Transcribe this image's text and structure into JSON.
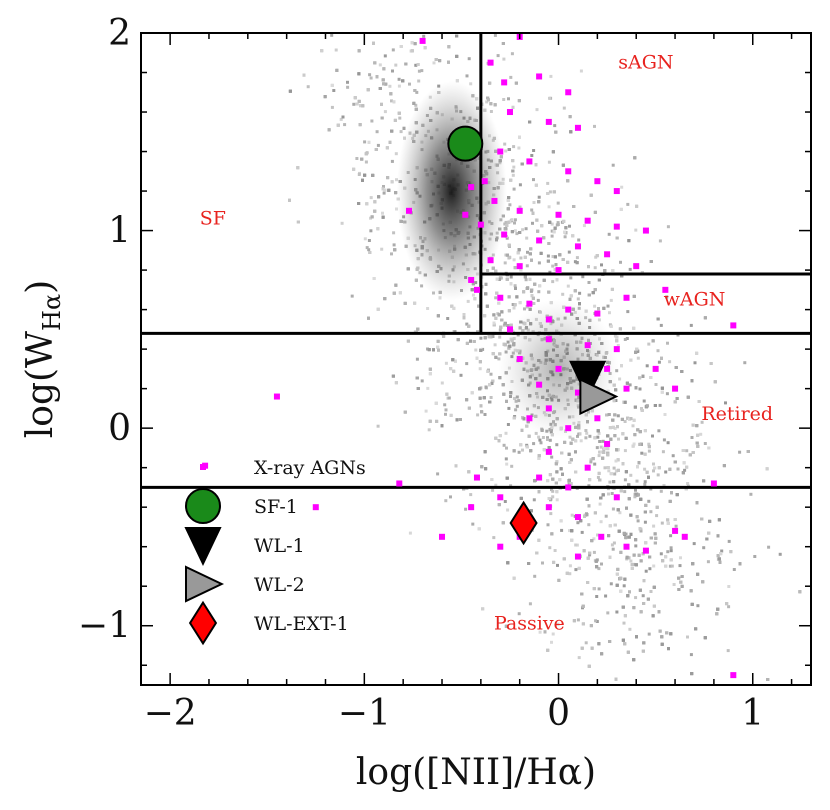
{
  "chart_data": {
    "type": "scatter",
    "title": "",
    "xlabel": "log([NII]/Hα)",
    "ylabel": {
      "main": "log(W",
      "sub": "Hα",
      "close": ")"
    },
    "xlim": [
      -2.15,
      1.3
    ],
    "ylim": [
      -1.3,
      2.0
    ],
    "xticks": [
      -2,
      -1,
      0,
      1
    ],
    "xtick_labels": [
      "−2",
      "−1",
      "0",
      "1"
    ],
    "yticks": [
      -1,
      0,
      1,
      2
    ],
    "ytick_labels": [
      "−1",
      "0",
      "1",
      "2"
    ],
    "x_minor_step": 0.2,
    "y_minor_step": 0.2,
    "divider_lines": [
      {
        "name": "divider-sf-vertical",
        "x": [
          -0.4,
          -0.4
        ],
        "y": [
          0.48,
          2.0
        ]
      },
      {
        "name": "divider-sagn-wagn",
        "x": [
          -0.4,
          1.3
        ],
        "y": [
          0.78,
          0.78
        ]
      },
      {
        "name": "divider-retired-upper",
        "x": [
          -2.15,
          1.3
        ],
        "y": [
          0.48,
          0.48
        ]
      },
      {
        "name": "divider-passive",
        "x": [
          -2.15,
          1.3
        ],
        "y": [
          -0.3,
          -0.3
        ]
      }
    ],
    "region_labels": [
      {
        "name": "region-label-sagn",
        "text": "sAGN",
        "x": 0.45,
        "y": 1.82
      },
      {
        "name": "region-label-sf",
        "text": "SF",
        "x": -1.78,
        "y": 1.03
      },
      {
        "name": "region-label-wagn",
        "text": "wAGN",
        "x": 0.7,
        "y": 0.62
      },
      {
        "name": "region-label-retired",
        "text": "Retired",
        "x": 0.92,
        "y": 0.04
      },
      {
        "name": "region-label-passive",
        "text": "Passive",
        "x": -0.15,
        "y": -1.02
      }
    ],
    "background_density": {
      "description": "grey 2D histogram of the parent galaxy sample",
      "color": "#888888",
      "ridge": [
        [
          -0.9,
          1.9
        ],
        [
          -0.5,
          1.3
        ],
        [
          -0.3,
          0.8
        ],
        [
          -0.1,
          0.4
        ],
        [
          0.1,
          0.1
        ],
        [
          0.3,
          -0.3
        ],
        [
          0.4,
          -0.8
        ]
      ]
    },
    "series": [
      {
        "name": "X-ray AGNs",
        "marker": "square",
        "color": "#ff00ff",
        "points": [
          [
            -0.7,
            1.96
          ],
          [
            -0.2,
            1.98
          ],
          [
            -0.35,
            1.85
          ],
          [
            -0.28,
            1.75
          ],
          [
            -0.1,
            1.78
          ],
          [
            -0.25,
            1.6
          ],
          [
            -0.05,
            1.55
          ],
          [
            0.1,
            1.52
          ],
          [
            -0.3,
            1.4
          ],
          [
            -0.15,
            1.35
          ],
          [
            0.05,
            1.3
          ],
          [
            0.2,
            1.25
          ],
          [
            -0.38,
            1.25
          ],
          [
            -0.45,
            1.22
          ],
          [
            -0.33,
            1.15
          ],
          [
            -0.2,
            1.1
          ],
          [
            0.0,
            1.08
          ],
          [
            0.15,
            1.05
          ],
          [
            0.3,
            1.02
          ],
          [
            -0.4,
            1.03
          ],
          [
            -0.28,
            0.98
          ],
          [
            -0.1,
            0.95
          ],
          [
            0.1,
            0.92
          ],
          [
            0.25,
            0.88
          ],
          [
            -0.35,
            0.85
          ],
          [
            -0.2,
            0.82
          ],
          [
            0.0,
            0.8
          ],
          [
            0.4,
            0.82
          ],
          [
            -0.42,
            0.7
          ],
          [
            -0.3,
            0.66
          ],
          [
            -0.15,
            0.63
          ],
          [
            0.05,
            0.6
          ],
          [
            0.2,
            0.58
          ],
          [
            0.35,
            0.66
          ],
          [
            -0.25,
            0.5
          ],
          [
            -0.05,
            0.45
          ],
          [
            0.15,
            0.42
          ],
          [
            0.3,
            0.4
          ],
          [
            -0.2,
            0.35
          ],
          [
            0.0,
            0.3
          ],
          [
            0.25,
            0.3
          ],
          [
            -0.1,
            0.22
          ],
          [
            0.1,
            0.18
          ],
          [
            0.35,
            0.2
          ],
          [
            -0.05,
            0.1
          ],
          [
            0.2,
            0.05
          ],
          [
            0.05,
            0.0
          ],
          [
            -0.15,
            0.05
          ],
          [
            0.25,
            -0.08
          ],
          [
            -0.05,
            -0.12
          ],
          [
            0.15,
            -0.2
          ],
          [
            -0.1,
            -0.25
          ],
          [
            0.05,
            -0.3
          ],
          [
            0.3,
            -0.35
          ],
          [
            -0.05,
            -0.4
          ],
          [
            0.1,
            -0.45
          ],
          [
            0.22,
            -0.55
          ],
          [
            -0.2,
            -0.55
          ],
          [
            0.35,
            -0.6
          ],
          [
            0.1,
            -0.65
          ],
          [
            -0.3,
            -0.35
          ],
          [
            -0.45,
            -0.4
          ],
          [
            -0.3,
            -0.6
          ],
          [
            -0.6,
            -0.55
          ],
          [
            0.45,
            -0.62
          ],
          [
            -0.42,
            -0.25
          ],
          [
            0.6,
            -0.52
          ],
          [
            0.65,
            -0.55
          ],
          [
            -0.82,
            -0.28
          ],
          [
            -1.25,
            -0.4
          ],
          [
            -1.45,
            0.16
          ],
          [
            -1.82,
            -0.19
          ],
          [
            -0.77,
            1.1
          ],
          [
            -0.48,
            1.08
          ],
          [
            0.9,
            0.52
          ],
          [
            0.8,
            -0.28
          ],
          [
            0.9,
            -1.25
          ],
          [
            -0.45,
            0.75
          ],
          [
            0.5,
            0.3
          ],
          [
            0.6,
            0.2
          ],
          [
            0.45,
            1.0
          ],
          [
            0.55,
            0.7
          ],
          [
            -0.05,
            0.55
          ],
          [
            0.3,
            1.2
          ],
          [
            0.05,
            1.7
          ]
        ]
      },
      {
        "name": "SF-1",
        "marker": "circle",
        "color": "#1a8a1a",
        "points": [
          [
            -0.48,
            1.44
          ]
        ]
      },
      {
        "name": "WL-1",
        "marker": "triangle-down",
        "color": "#000000",
        "points": [
          [
            0.15,
            0.25
          ]
        ]
      },
      {
        "name": "WL-2",
        "marker": "triangle-right",
        "color": "#999999",
        "points": [
          [
            0.2,
            0.16
          ]
        ]
      },
      {
        "name": "WL-EXT-1",
        "marker": "diamond",
        "color": "#ff0000",
        "points": [
          [
            -0.18,
            -0.48
          ]
        ]
      }
    ],
    "legend": {
      "position": "lower-left",
      "entries": [
        {
          "label": "X-ray AGNs",
          "marker": "square",
          "color": "#ff00ff"
        },
        {
          "label": "SF-1",
          "marker": "circle",
          "color": "#1a8a1a"
        },
        {
          "label": "WL-1",
          "marker": "triangle-down",
          "color": "#000000"
        },
        {
          "label": "WL-2",
          "marker": "triangle-right",
          "color": "#999999"
        },
        {
          "label": "WL-EXT-1",
          "marker": "diamond",
          "color": "#ff0000"
        }
      ]
    }
  }
}
